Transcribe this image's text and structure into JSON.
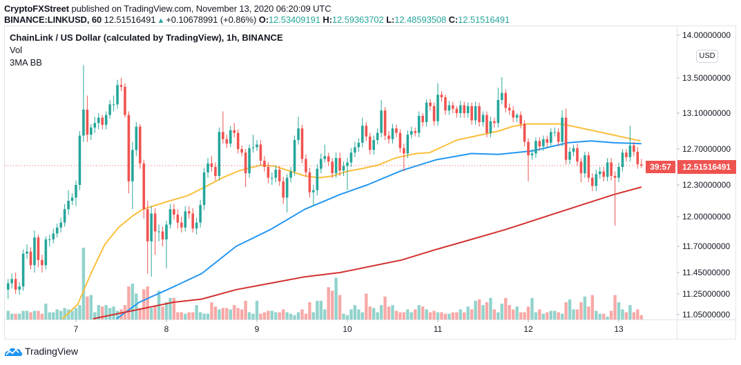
{
  "header": {
    "publisher": "CryptoFXStreet",
    "published_text": "published on TradingView.com, November 13, 2020 06:20:09 UTC",
    "symbol": "BINANCE:LINKUSD, 60",
    "last": "12.51516491",
    "change": "+0.10678991 (+0.86%)",
    "o_label": "O:",
    "o_value": "12.53409191",
    "h_label": "H:",
    "h_value": "12.59363702",
    "l_label": "L:",
    "l_value": "12.48593508",
    "c_label": "C:",
    "c_value": "12.51516491"
  },
  "legend": {
    "title": "ChainLink / US Dollar (calculated by TradingView), 1h, BINANCE",
    "vol": "Vol",
    "indicator": "3MA BB"
  },
  "price_axis": {
    "currency": "USD",
    "ticks": [
      "14.00000000",
      "13.50000000",
      "13.10000000",
      "12.70000000",
      "12.30000000",
      "12.00000000",
      "11.70000000",
      "11.45000000",
      "11.25000000",
      "11.05000000"
    ],
    "last_price_label": "12.51516491",
    "countdown": "39:57"
  },
  "time_axis": {
    "ticks": [
      "7",
      "8",
      "9",
      "10",
      "11",
      "12",
      "13"
    ]
  },
  "footer": {
    "brand": "TradingView"
  },
  "colors": {
    "up": "#26a69a",
    "down": "#ef5350",
    "vol_up": "#92d3cc",
    "vol_down": "#f7a9a7",
    "ma_fast": "#f9bf3b",
    "ma_mid": "#2196f3",
    "ma_slow": "#d32f2f",
    "last_line": "#ef5350"
  },
  "chart_data": {
    "type": "candlestick",
    "xlabel": "",
    "ylabel": "",
    "x_unit": "day of November 2020",
    "x_start": 6.25,
    "interval": "1h",
    "ylim": [
      11.05,
      14.0
    ],
    "y_ticks": [
      14.0,
      13.5,
      13.1,
      12.7,
      12.3,
      12.0,
      11.7,
      11.45,
      11.25,
      11.05
    ],
    "x_ticks": [
      7,
      8,
      9,
      10,
      11,
      12,
      13
    ],
    "grid": false,
    "last_price": 12.51516491,
    "first_open": 11.29,
    "close": [
      11.35,
      11.39,
      11.29,
      11.32,
      11.63,
      11.65,
      11.52,
      11.79,
      11.57,
      11.52,
      11.77,
      11.77,
      11.83,
      11.89,
      11.94,
      12.07,
      12.15,
      12.18,
      12.3,
      12.85,
      13.14,
      12.86,
      12.94,
      12.99,
      13.05,
      12.97,
      13.08,
      13.2,
      13.2,
      13.42,
      13.4,
      13.08,
      12.34,
      12.69,
      12.95,
      12.54,
      12.07,
      11.75,
      12.03,
      11.85,
      11.85,
      11.77,
      11.92,
      12.07,
      12.02,
      11.94,
      11.89,
      12.05,
      12.03,
      11.88,
      11.94,
      12.11,
      12.44,
      12.54,
      12.5,
      12.4,
      12.89,
      12.81,
      12.76,
      12.91,
      12.88,
      12.7,
      12.66,
      12.43,
      12.71,
      12.72,
      12.75,
      12.57,
      12.5,
      12.38,
      12.38,
      12.47,
      12.34,
      12.18,
      12.38,
      12.45,
      12.8,
      12.93,
      12.59,
      12.44,
      12.23,
      12.25,
      12.48,
      12.59,
      12.62,
      12.56,
      12.43,
      12.6,
      12.46,
      12.51,
      12.55,
      12.66,
      12.72,
      12.77,
      12.96,
      12.84,
      12.69,
      12.8,
      12.88,
      13.13,
      12.85,
      12.81,
      12.93,
      12.88,
      12.71,
      12.65,
      12.86,
      12.9,
      12.88,
      13.07,
      13.0,
      13.22,
      13.18,
      13.01,
      13.31,
      13.28,
      13.13,
      13.19,
      13.15,
      13.1,
      13.19,
      13.1,
      13.18,
      13.02,
      13.18,
      13.0,
      13.08,
      12.88,
      13.01,
      12.99,
      13.25,
      13.33,
      13.16,
      13.13,
      13.05,
      13.08,
      12.98,
      12.78,
      12.63,
      12.65,
      12.79,
      12.73,
      12.81,
      12.77,
      12.89,
      12.89,
      12.78,
      13.05,
      12.58,
      12.67,
      12.71,
      12.56,
      12.43,
      12.63,
      12.38,
      12.29,
      12.42,
      12.45,
      12.39,
      12.55,
      12.4,
      12.38,
      12.5,
      12.66,
      12.61,
      12.74,
      12.67,
      12.53,
      12.52
    ],
    "high": [
      11.39,
      11.44,
      11.45,
      11.36,
      11.67,
      11.72,
      11.69,
      11.86,
      11.82,
      11.62,
      11.8,
      11.82,
      11.88,
      11.93,
      11.99,
      12.12,
      12.25,
      12.22,
      12.35,
      12.9,
      13.65,
      13.3,
      12.98,
      13.06,
      13.1,
      13.08,
      13.12,
      13.25,
      13.3,
      13.48,
      13.5,
      13.44,
      13.12,
      12.78,
      13.0,
      12.98,
      12.58,
      12.15,
      12.1,
      12.08,
      11.92,
      11.9,
      11.96,
      12.12,
      12.12,
      12.07,
      12.0,
      12.1,
      12.1,
      12.08,
      11.99,
      12.16,
      12.49,
      12.6,
      12.62,
      12.55,
      12.94,
      13.12,
      12.86,
      12.96,
      12.99,
      12.92,
      12.74,
      12.7,
      12.75,
      12.86,
      12.8,
      12.8,
      12.62,
      12.55,
      12.44,
      12.52,
      12.51,
      12.39,
      12.42,
      12.5,
      12.85,
      13.06,
      12.97,
      12.64,
      12.49,
      12.3,
      12.53,
      12.65,
      12.75,
      12.66,
      12.6,
      12.66,
      12.66,
      12.56,
      12.6,
      12.71,
      12.78,
      12.82,
      13.05,
      13.0,
      12.88,
      12.85,
      12.93,
      13.25,
      13.17,
      12.9,
      12.98,
      12.97,
      12.92,
      12.76,
      12.91,
      12.95,
      12.94,
      13.12,
      13.1,
      13.26,
      13.26,
      13.22,
      13.44,
      13.35,
      13.31,
      13.24,
      13.23,
      13.18,
      13.24,
      13.23,
      13.22,
      13.22,
      13.23,
      13.22,
      13.12,
      13.12,
      13.06,
      13.05,
      13.39,
      13.51,
      13.37,
      13.21,
      13.18,
      13.1,
      13.12,
      13.02,
      12.82,
      12.7,
      12.83,
      12.83,
      12.85,
      12.85,
      12.93,
      12.94,
      12.93,
      13.13,
      13.15,
      12.72,
      12.75,
      12.76,
      12.6,
      12.67,
      12.67,
      12.43,
      12.47,
      12.5,
      12.5,
      12.6,
      12.6,
      12.45,
      12.55,
      12.7,
      12.7,
      12.96,
      12.78,
      12.72,
      12.59
    ],
    "low": [
      11.2,
      11.3,
      11.25,
      11.24,
      11.28,
      11.58,
      11.48,
      11.45,
      11.5,
      11.45,
      11.48,
      11.7,
      11.73,
      11.79,
      11.84,
      11.9,
      12.02,
      12.11,
      12.1,
      12.25,
      12.78,
      12.78,
      12.8,
      12.88,
      12.92,
      12.92,
      12.92,
      13.04,
      13.12,
      13.15,
      13.35,
      13.05,
      12.22,
      12.07,
      12.62,
      12.48,
      11.98,
      11.44,
      11.41,
      11.62,
      11.75,
      11.7,
      11.49,
      11.88,
      11.97,
      11.88,
      11.84,
      11.85,
      11.98,
      11.84,
      11.82,
      11.89,
      12.06,
      12.38,
      12.45,
      12.35,
      12.35,
      12.76,
      12.71,
      12.72,
      12.83,
      12.65,
      12.62,
      12.28,
      12.38,
      12.66,
      12.68,
      12.52,
      12.45,
      12.32,
      12.3,
      12.33,
      12.29,
      12.12,
      12.04,
      12.33,
      12.4,
      12.75,
      12.54,
      12.39,
      12.18,
      12.1,
      12.2,
      12.43,
      12.55,
      12.51,
      12.38,
      12.38,
      12.4,
      12.4,
      12.25,
      12.5,
      12.61,
      12.67,
      12.72,
      12.79,
      12.64,
      12.64,
      12.75,
      12.83,
      12.8,
      12.76,
      12.76,
      12.83,
      12.66,
      12.45,
      12.6,
      12.82,
      12.84,
      12.83,
      12.95,
      12.95,
      13.13,
      12.96,
      12.96,
      13.23,
      13.08,
      13.08,
      13.1,
      13.05,
      13.05,
      13.05,
      13.05,
      12.97,
      12.97,
      12.95,
      12.95,
      12.83,
      12.83,
      12.94,
      12.94,
      13.2,
      13.11,
      13.08,
      13.0,
      13.0,
      12.93,
      12.73,
      12.34,
      12.58,
      12.6,
      12.68,
      12.68,
      12.72,
      12.72,
      12.84,
      12.73,
      12.73,
      12.53,
      12.53,
      12.62,
      12.51,
      12.33,
      12.38,
      12.33,
      12.24,
      12.24,
      12.37,
      12.34,
      12.34,
      12.35,
      11.91,
      12.33,
      12.45,
      12.56,
      12.56,
      12.62,
      12.48,
      12.49
    ],
    "volume_relative": [
      12,
      8,
      8,
      8,
      12,
      12,
      10,
      12,
      12,
      8,
      22,
      10,
      10,
      14,
      12,
      16,
      14,
      12,
      16,
      20,
      100,
      32,
      34,
      10,
      20,
      18,
      20,
      16,
      18,
      12,
      14,
      20,
      46,
      50,
      36,
      16,
      42,
      46,
      16,
      18,
      40,
      18,
      24,
      30,
      30,
      10,
      10,
      8,
      10,
      10,
      20,
      10,
      8,
      8,
      24,
      18,
      14,
      16,
      16,
      14,
      20,
      16,
      14,
      26,
      10,
      8,
      26,
      8,
      10,
      12,
      12,
      10,
      10,
      14,
      10,
      8,
      6,
      10,
      14,
      8,
      24,
      10,
      26,
      26,
      14,
      45,
      40,
      58,
      34,
      8,
      6,
      14,
      20,
      14,
      10,
      36,
      18,
      16,
      10,
      20,
      32,
      18,
      20,
      12,
      10,
      10,
      14,
      10,
      14,
      20,
      18,
      14,
      10,
      12,
      10,
      10,
      8,
      8,
      10,
      10,
      14,
      10,
      18,
      14,
      26,
      28,
      20,
      24,
      30,
      14,
      10,
      22,
      30,
      20,
      14,
      18,
      10,
      10,
      18,
      30,
      10,
      14,
      8,
      10,
      12,
      12,
      10,
      8,
      24,
      28,
      14,
      14,
      24,
      32,
      18,
      34,
      12,
      8,
      8,
      4,
      12,
      34,
      24,
      14,
      10,
      20,
      10,
      14,
      6
    ],
    "moving_averages": [
      {
        "key": "ma_fast",
        "points": [
          [
            6.85,
            11.01
          ],
          [
            7.02,
            11.15
          ],
          [
            7.17,
            11.45
          ],
          [
            7.32,
            11.72
          ],
          [
            7.47,
            11.89
          ],
          [
            7.63,
            12.01
          ],
          [
            7.74,
            12.07
          ],
          [
            8.0,
            12.14
          ],
          [
            8.24,
            12.2
          ],
          [
            8.47,
            12.3
          ],
          [
            8.62,
            12.38
          ],
          [
            8.81,
            12.46
          ],
          [
            9.04,
            12.52
          ],
          [
            9.19,
            12.51
          ],
          [
            9.38,
            12.45
          ],
          [
            9.53,
            12.4
          ],
          [
            9.69,
            12.38
          ],
          [
            9.84,
            12.4
          ],
          [
            9.99,
            12.45
          ],
          [
            10.15,
            12.48
          ],
          [
            10.34,
            12.52
          ],
          [
            10.53,
            12.6
          ],
          [
            10.76,
            12.65
          ],
          [
            10.91,
            12.66
          ],
          [
            11.06,
            12.73
          ],
          [
            11.21,
            12.8
          ],
          [
            11.44,
            12.85
          ],
          [
            11.67,
            12.9
          ],
          [
            11.82,
            12.95
          ],
          [
            11.98,
            12.98
          ],
          [
            12.21,
            12.98
          ],
          [
            12.36,
            12.98
          ],
          [
            12.51,
            12.95
          ],
          [
            12.74,
            12.9
          ],
          [
            12.97,
            12.85
          ],
          [
            13.24,
            12.79
          ]
        ]
      },
      {
        "key": "ma_mid",
        "points": [
          [
            7.45,
            11.01
          ],
          [
            7.7,
            11.17
          ],
          [
            8.01,
            11.29
          ],
          [
            8.39,
            11.44
          ],
          [
            8.77,
            11.7
          ],
          [
            9.15,
            11.87
          ],
          [
            9.53,
            12.07
          ],
          [
            9.92,
            12.21
          ],
          [
            10.22,
            12.3
          ],
          [
            10.6,
            12.46
          ],
          [
            10.98,
            12.58
          ],
          [
            11.37,
            12.65
          ],
          [
            11.67,
            12.64
          ],
          [
            12.05,
            12.68
          ],
          [
            12.44,
            12.77
          ],
          [
            12.69,
            12.79
          ],
          [
            12.95,
            12.77
          ],
          [
            13.25,
            12.76
          ]
        ]
      },
      {
        "key": "ma_slow",
        "points": [
          [
            7.19,
            11.01
          ],
          [
            8.08,
            11.17
          ],
          [
            8.39,
            11.2
          ],
          [
            8.77,
            11.29
          ],
          [
            9.15,
            11.35
          ],
          [
            9.53,
            11.41
          ],
          [
            9.92,
            11.45
          ],
          [
            10.6,
            11.57
          ],
          [
            10.98,
            11.67
          ],
          [
            11.37,
            11.77
          ],
          [
            11.75,
            11.87
          ],
          [
            12.44,
            12.07
          ],
          [
            12.95,
            12.21
          ],
          [
            13.25,
            12.28
          ]
        ]
      }
    ]
  }
}
